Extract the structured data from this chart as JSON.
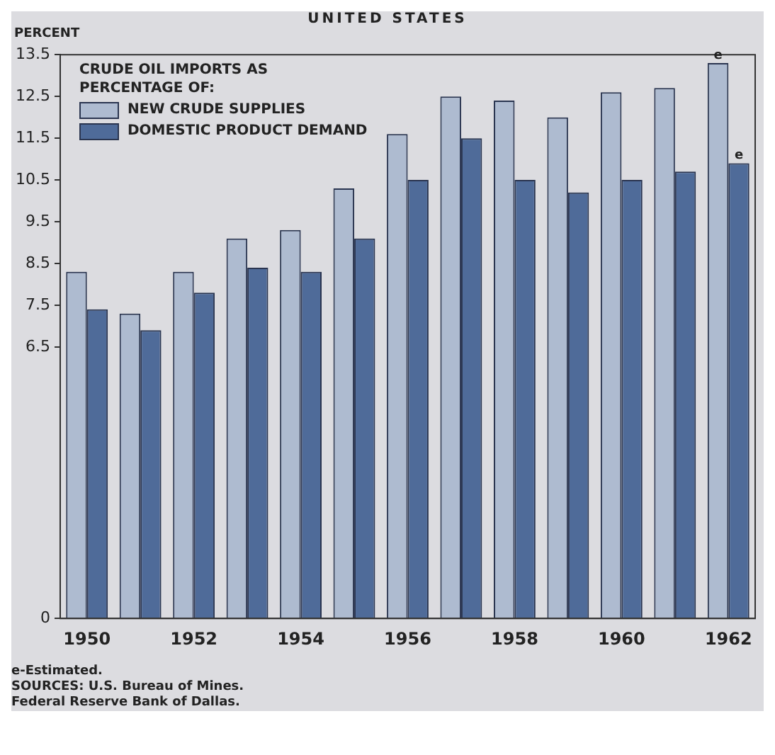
{
  "chart_data": {
    "type": "bar",
    "title": "UNITED STATES",
    "ylabel": "PERCENT",
    "legend_title": "CRUDE OIL IMPORTS AS PERCENTAGE OF:",
    "categories": [
      "1950",
      null,
      "1952",
      null,
      "1954",
      null,
      "1956",
      null,
      "1958",
      null,
      "1960",
      null,
      "1962"
    ],
    "series": [
      {
        "name": "NEW CRUDE SUPPLIES",
        "color": "#aebbd0",
        "values": [
          8.3,
          7.3,
          8.3,
          9.1,
          9.3,
          10.3,
          11.6,
          12.5,
          12.4,
          12.0,
          12.6,
          12.7,
          13.3
        ]
      },
      {
        "name": "DOMESTIC PRODUCT DEMAND",
        "color": "#4f6b99",
        "values": [
          7.4,
          6.9,
          7.8,
          8.4,
          8.3,
          9.1,
          10.5,
          11.5,
          10.5,
          10.2,
          10.5,
          10.7,
          10.9
        ]
      }
    ],
    "ylim": [
      0,
      13.5
    ],
    "yticks": [
      0,
      6.5,
      7.5,
      8.5,
      9.5,
      10.5,
      11.5,
      12.5,
      13.5
    ],
    "grid": false,
    "legend": "top left",
    "annotations": [
      {
        "text": "e",
        "x": "1962",
        "y": 13.3
      },
      {
        "text": "e",
        "x": "1962",
        "y": 10.9
      },
      "e-Estimated.",
      "SOURCES: U.S. Bureau of Mines.\nFederal Reserve Bank of Dallas."
    ]
  }
}
